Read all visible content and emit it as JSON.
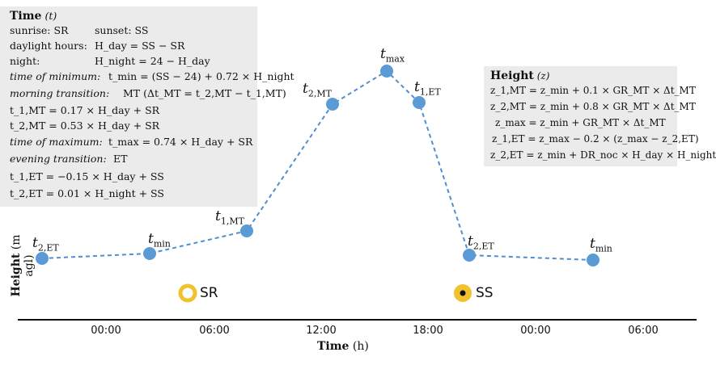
{
  "time_box": {
    "title": "Time",
    "title_var": "(t)",
    "rows": [
      {
        "a": "sunrise: SR",
        "b": "sunset: SS"
      },
      {
        "a": "daylight hours:",
        "b": "H_day = SS − SR"
      },
      {
        "a": "night:",
        "b": "H_night = 24 − H_day"
      },
      {
        "a": "time of minimum:",
        "b": "t_min = (SS − 24) + 0.72 × H_night"
      },
      {
        "a": "morning transition:",
        "b": "MT (Δt_MT = t_2,MT − t_1,MT)"
      },
      {
        "a": "t_1,MT = 0.17 × H_day + SR",
        "b": ""
      },
      {
        "a": "t_2,MT = 0.53 × H_day + SR",
        "b": ""
      },
      {
        "a": "time of maximum:",
        "b": "t_max = 0.74 × H_day + SR"
      },
      {
        "a": "evening transition:",
        "b": "ET"
      },
      {
        "a": "t_1,ET = −0.15 × H_day + SS",
        "b": ""
      },
      {
        "a": "t_2,ET = 0.01 × H_night + SS",
        "b": ""
      }
    ]
  },
  "height_box": {
    "title": "Height",
    "title_var": "(z)",
    "rows": [
      "z_1,MT = z_min + 0.1 × GR_MT × Δt_MT",
      "z_2,MT = z_min + 0.8 × GR_MT × Δt_MT",
      "z_max = z_min + GR_MT × Δt_MT",
      "z_1,ET = z_max − 0.2 × (z_max − z_2,ET)",
      "z_2,ET = z_min + DR_noc × H_day × H_night"
    ]
  },
  "points": [
    {
      "label": "t",
      "sub": "2,ET"
    },
    {
      "label": "t",
      "sub": "min"
    },
    {
      "label": "t",
      "sub": "1,MT"
    },
    {
      "label": "t",
      "sub": "2,MT"
    },
    {
      "label": "t",
      "sub": "max"
    },
    {
      "label": "t",
      "sub": "1,ET"
    },
    {
      "label": "t",
      "sub": "2,ET"
    },
    {
      "label": "t",
      "sub": "min"
    }
  ],
  "sun": {
    "sunrise": "SR",
    "sunset": "SS"
  },
  "x_ticks": [
    "00:00",
    "06:00",
    "12:00",
    "18:00",
    "00:00",
    "06:00"
  ],
  "x_axis": {
    "title": "Time",
    "unit": "(h)"
  },
  "y_axis": {
    "title": "Height",
    "unit": "(m agl)"
  },
  "colors": {
    "point": "#5b9bd5",
    "line": "#4f8fd0",
    "sun": "#f2c12e",
    "box": "#ebebeb"
  }
}
